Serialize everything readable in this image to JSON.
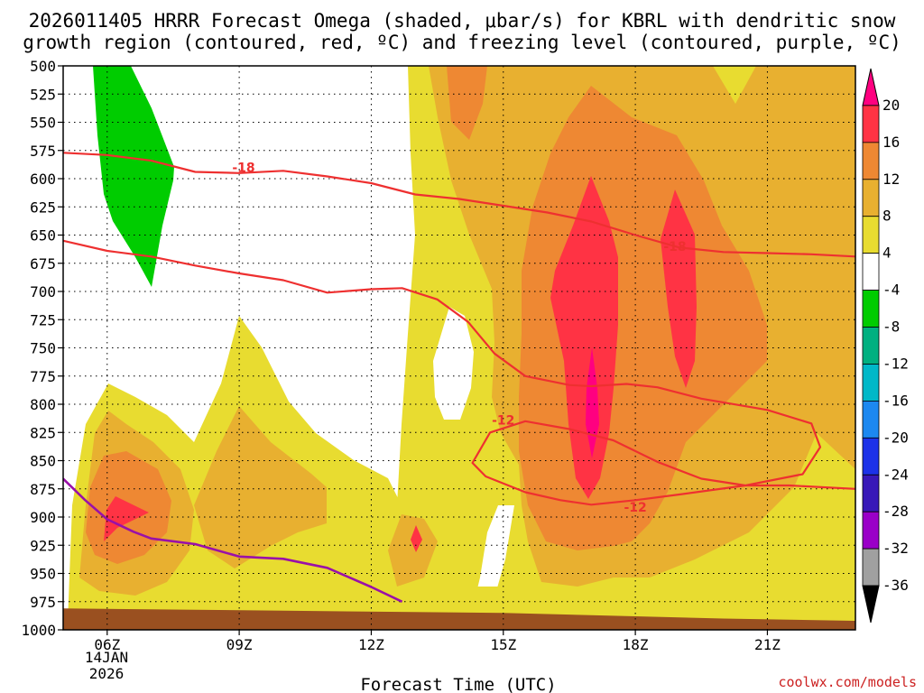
{
  "chart_data": {
    "type": "contour",
    "title_line1": "2026011405 HRRR Forecast Omega (shaded, μbar/s) for KBRL with dendritic snow",
    "title_line2": "growth region (contoured, red, ºC) and freezing level (contoured, purple, ºC)",
    "xlabel": "Forecast Time (UTC)",
    "credit": "coolwx.com/models",
    "x_range_hours": [
      5,
      23
    ],
    "x_ticks": [
      {
        "hour": 6,
        "label": "06Z"
      },
      {
        "hour": 9,
        "label": "09Z"
      },
      {
        "hour": 12,
        "label": "12Z"
      },
      {
        "hour": 15,
        "label": "15Z"
      },
      {
        "hour": 18,
        "label": "18Z"
      },
      {
        "hour": 21,
        "label": "21Z"
      }
    ],
    "x_date_label": [
      "14JAN",
      "2026"
    ],
    "y_range_hpa": [
      500,
      1000
    ],
    "y_ticks": [
      500,
      525,
      550,
      575,
      600,
      625,
      650,
      675,
      700,
      725,
      750,
      775,
      800,
      825,
      850,
      875,
      900,
      925,
      950,
      975,
      1000
    ],
    "grid": true,
    "colorbar": {
      "labels": [
        "20",
        "16",
        "12",
        "8",
        "4",
        "-4",
        "-8",
        "-12",
        "-16",
        "-20",
        "-24",
        "-28",
        "-32",
        "-36"
      ],
      "colors": [
        "#ff0080",
        "#ff3344",
        "#ee8833",
        "#e8b030",
        "#e8dc30",
        "#ffffff",
        "#00cc00",
        "#00b080",
        "#00b8c8",
        "#1c88f0",
        "#1c32e8",
        "#3818b8",
        "#9a00c8",
        "#a0a0a0",
        "#000000"
      ]
    },
    "shading": [
      {
        "level": ">4",
        "color": "#e8dc30"
      },
      {
        "level": ">8",
        "color": "#e8b030"
      },
      {
        "level": ">12",
        "color": "#ee8833"
      },
      {
        "level": ">16",
        "color": "#ff3344"
      },
      {
        "level": ">20",
        "color": "#ff0080"
      },
      {
        "level": "<-4",
        "color": "#00cc00"
      }
    ],
    "dgz_contours": [
      {
        "label": "-18",
        "color": "#ee3030",
        "points": [
          [
            5,
            577
          ],
          [
            6,
            579
          ],
          [
            7,
            584
          ],
          [
            8,
            594
          ],
          [
            9,
            595
          ],
          [
            10,
            593
          ],
          [
            11,
            598
          ],
          [
            12,
            604
          ],
          [
            13,
            614
          ],
          [
            14,
            618
          ],
          [
            15,
            624
          ],
          [
            16,
            630
          ],
          [
            17,
            638
          ],
          [
            18,
            650
          ],
          [
            19,
            661
          ],
          [
            20,
            665
          ],
          [
            21,
            666
          ],
          [
            22,
            667
          ],
          [
            23,
            669
          ]
        ]
      },
      {
        "label": "-12",
        "color": "#ee3030",
        "points": [
          [
            5,
            655
          ],
          [
            6,
            664
          ],
          [
            7,
            669
          ],
          [
            8,
            677
          ],
          [
            9,
            684
          ],
          [
            10,
            690
          ],
          [
            11,
            701
          ],
          [
            12,
            698
          ],
          [
            12.7,
            697
          ],
          [
            13.5,
            707
          ],
          [
            14.2,
            727
          ],
          [
            14.8,
            755
          ],
          [
            15.5,
            775
          ],
          [
            16.5,
            783
          ],
          [
            17,
            784
          ],
          [
            17.8,
            782
          ],
          [
            18.5,
            785
          ],
          [
            19.5,
            795
          ],
          [
            21,
            805
          ],
          [
            22,
            817
          ],
          [
            22.2,
            838
          ],
          [
            21.8,
            862
          ],
          [
            20.5,
            872
          ],
          [
            19,
            880
          ],
          [
            18,
            885
          ],
          [
            17,
            889
          ],
          [
            16.3,
            885
          ],
          [
            15.5,
            878
          ],
          [
            14.6,
            864
          ],
          [
            14.3,
            852
          ],
          [
            14.7,
            825
          ],
          [
            15.5,
            815
          ],
          [
            16.5,
            822
          ],
          [
            17.5,
            832
          ],
          [
            18.5,
            851
          ],
          [
            19.5,
            866
          ],
          [
            20.5,
            872
          ],
          [
            21.5,
            872
          ],
          [
            23,
            875
          ]
        ]
      }
    ],
    "dgz_label_positions": [
      [
        9.1,
        590
      ],
      [
        18.9,
        660
      ],
      [
        15,
        814
      ],
      [
        18,
        891
      ]
    ],
    "freezing_level": {
      "label": "",
      "color": "#9a10a8",
      "points": [
        [
          5,
          866
        ],
        [
          5.5,
          885
        ],
        [
          6,
          902
        ],
        [
          6.6,
          913
        ],
        [
          7,
          919
        ],
        [
          8,
          924
        ],
        [
          9,
          935
        ],
        [
          10,
          937
        ],
        [
          11,
          945
        ],
        [
          12,
          962
        ],
        [
          12.7,
          975
        ]
      ]
    },
    "surface_color": "#9a5020",
    "surface_pressure_hpa": [
      [
        5,
        981
      ],
      [
        10,
        983
      ],
      [
        15,
        985
      ],
      [
        20,
        990
      ],
      [
        23,
        992
      ]
    ]
  }
}
